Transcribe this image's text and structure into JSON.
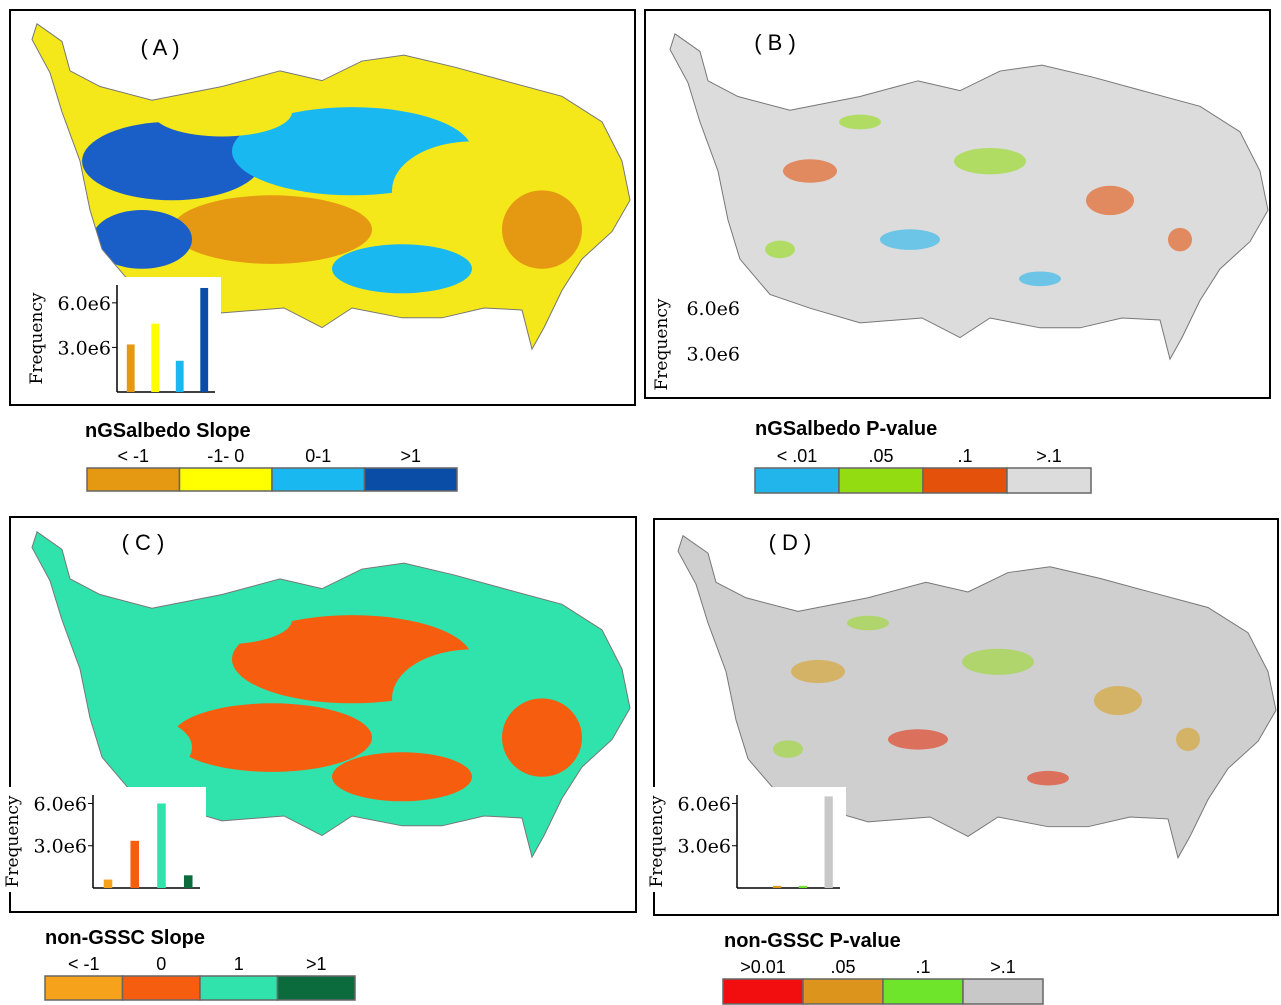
{
  "chart_data": [
    {
      "type": "bar",
      "panel_label": "( A )",
      "legend_title": "nGSalbedo Slope",
      "ylabel": "Frequency",
      "categories": [
        "< -1",
        "-1- 0",
        "0-1",
        ">1"
      ],
      "colors": [
        "#e59812",
        "#ffff00",
        "#1ab8f0",
        "#0a4da6"
      ],
      "values": [
        3200000,
        4600000,
        2100000,
        7000000
      ],
      "ylim": [
        0,
        7200000
      ],
      "yticks": [
        {
          "value": 6000000,
          "label": "6.0e6"
        },
        {
          "value": 3000000,
          "label": "3.0e6"
        }
      ]
    },
    {
      "type": "bar",
      "panel_label": "( B )",
      "legend_title": "nGSalbedo P-value",
      "ylabel": "Frequency",
      "categories": [
        "< .01",
        ".05",
        ".1",
        ">.1"
      ],
      "colors": [
        "#22b5ec",
        "#93dc12",
        "#e4510b",
        "#dcdcdc"
      ],
      "ylim": [
        0,
        7200000
      ],
      "yticks": [
        {
          "value": 6000000,
          "label": "6.0e6"
        },
        {
          "value": 3000000,
          "label": "3.0e6"
        }
      ]
    },
    {
      "type": "bar",
      "panel_label": "( C )",
      "legend_title": "non-GSSC Slope",
      "ylabel": "Frequency",
      "categories": [
        "< -1",
        "0",
        "1",
        ">1"
      ],
      "colors": [
        "#f7a21b",
        "#f65d0e",
        "#30e3ac",
        "#0b6b3d"
      ],
      "values": [
        600000,
        3350000,
        6000000,
        900000
      ],
      "ylim": [
        0,
        6600000
      ],
      "yticks": [
        {
          "value": 6000000,
          "label": "6.0e6"
        },
        {
          "value": 3000000,
          "label": "3.0e6"
        }
      ]
    },
    {
      "type": "bar",
      "panel_label": "( D )",
      "legend_title": "non-GSSC  P-value",
      "ylabel": "Frequency",
      "categories": [
        ">0.01",
        ".05",
        ".1",
        ">.1"
      ],
      "colors": [
        "#f20e0e",
        "#dd941d",
        "#6ee52a",
        "#c8c8c8"
      ],
      "values": [
        0,
        150000,
        150000,
        6500000
      ],
      "ylim": [
        0,
        6600000
      ],
      "yticks": [
        {
          "value": 6000000,
          "label": "6.0e6"
        },
        {
          "value": 3000000,
          "label": "3.0e6"
        }
      ]
    }
  ]
}
